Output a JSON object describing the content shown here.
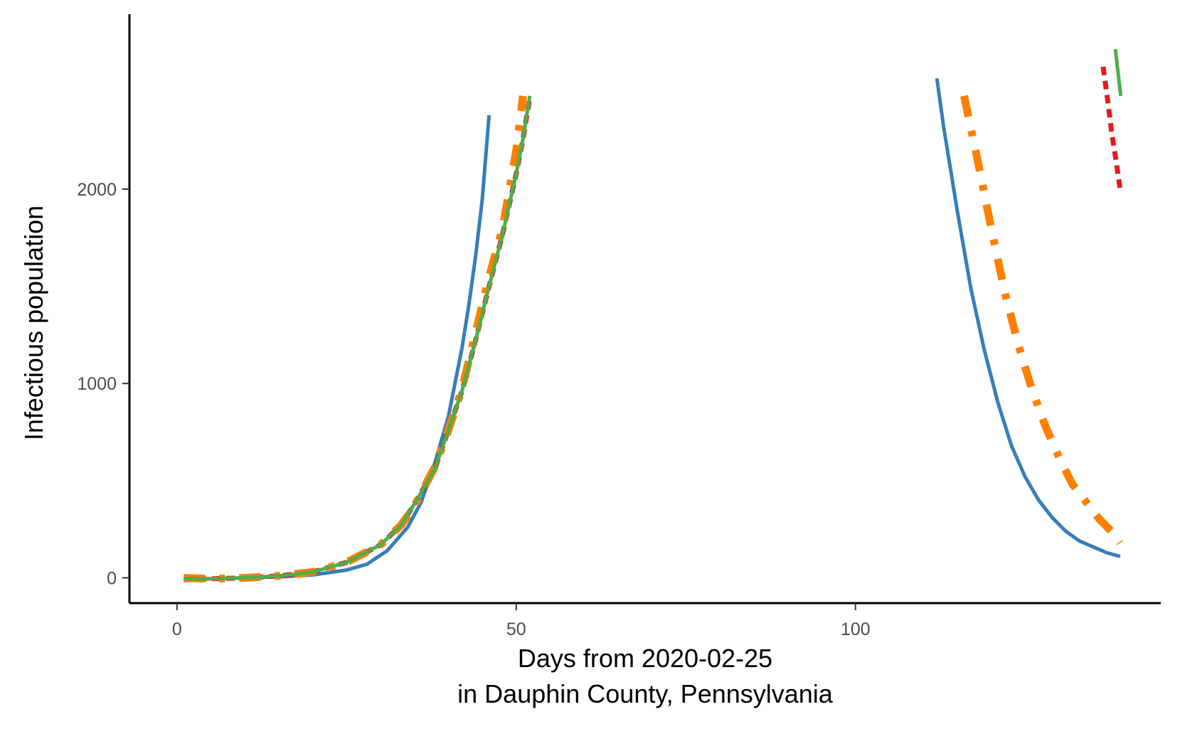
{
  "chart_data": {
    "type": "line",
    "title": "",
    "xlabel": "Days from 2020-02-25",
    "xlabel_line2": "in Dauphin County, Pennsylvania",
    "ylabel": "Infectious population",
    "xlim": [
      -7,
      145
    ],
    "ylim": [
      -130,
      2900
    ],
    "xticks": [
      0,
      50,
      100
    ],
    "yticks": [
      0,
      1000,
      2000
    ],
    "grid": false,
    "legend": "none",
    "series": [
      {
        "color": "#377eb8",
        "dash": "solid",
        "width": 5,
        "segments": [
          {
            "x": [
              1,
              5,
              10,
              15,
              20,
              25,
              28,
              31,
              34,
              36,
              38,
              40,
              42,
              43,
              44,
              45,
              46
            ],
            "y": [
              -5,
              -5,
              0,
              5,
              15,
              40,
              70,
              140,
              260,
              390,
              590,
              830,
              1180,
              1400,
              1650,
              1950,
              2380
            ]
          },
          {
            "x": [
              112,
              113,
              115,
              117,
              119,
              121,
              123,
              125,
              127,
              129,
              131,
              133,
              135,
              137,
              139
            ],
            "y": [
              2570,
              2320,
              1890,
              1490,
              1170,
              900,
              680,
              520,
              400,
              310,
              240,
              190,
              160,
              130,
              110
            ]
          }
        ]
      },
      {
        "color": "#e41a1c",
        "dash": "12 8",
        "width": 7,
        "segments": [
          {
            "x": [
              1,
              5,
              10,
              15,
              20,
              25,
              30,
              33,
              35,
              38,
              40,
              42,
              44,
              46,
              48,
              50,
              51,
              52
            ],
            "y": [
              -10,
              -5,
              0,
              10,
              30,
              80,
              170,
              270,
              380,
              560,
              760,
              960,
              1220,
              1500,
              1770,
              2080,
              2260,
              2470
            ]
          },
          {
            "x": [
              136.5,
              137.2,
              137.8,
              138.4,
              139
            ],
            "y": [
              2630,
              2450,
              2280,
              2150,
              2000
            ]
          }
        ]
      },
      {
        "color": "#ff7f00",
        "dash": "30 20 8 20",
        "width": 11,
        "segments": [
          {
            "x": [
              1,
              5,
              10,
              15,
              20,
              25,
              30,
              33,
              35,
              38,
              40,
              42,
              44,
              46,
              48,
              49,
              50,
              51
            ],
            "y": [
              0,
              -5,
              0,
              10,
              30,
              80,
              170,
              270,
              370,
              570,
              760,
              970,
              1260,
              1550,
              1800,
              2000,
              2200,
              2480
            ]
          },
          {
            "x": [
              116,
              118,
              120,
              122,
              124,
              126,
              128,
              130,
              132,
              134,
              136,
              138,
              139
            ],
            "y": [
              2480,
              2150,
              1800,
              1470,
              1200,
              970,
              780,
              620,
              480,
              390,
              300,
              230,
              180
            ]
          }
        ]
      },
      {
        "color": "#4daf4a",
        "dash": "solid",
        "width": 5,
        "segments": [
          {
            "x": [
              1,
              5,
              10,
              15,
              20,
              25,
              30,
              33,
              35,
              38,
              40,
              42,
              44,
              46,
              48,
              50,
              51,
              52
            ],
            "y": [
              -5,
              -5,
              0,
              10,
              30,
              80,
              170,
              270,
              380,
              560,
              760,
              960,
              1220,
              1500,
              1770,
              2080,
              2260,
              2480
            ]
          },
          {
            "x": [
              138.3,
              138.7,
              139.1
            ],
            "y": [
              2720,
              2600,
              2480
            ]
          }
        ]
      }
    ]
  }
}
